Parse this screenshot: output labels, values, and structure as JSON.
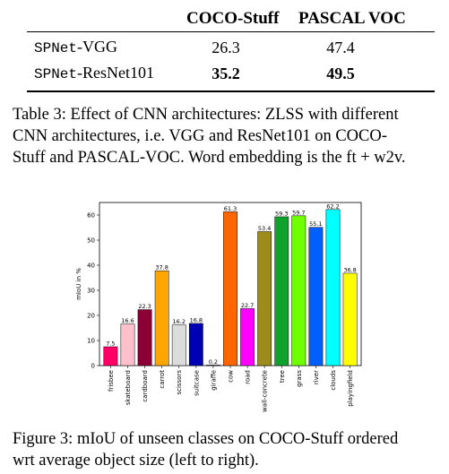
{
  "table": {
    "headers": [
      "COCO-Stuff",
      "PASCAL VOC"
    ],
    "rows": [
      {
        "prefix": "SPNet",
        "suffix": "-VGG",
        "values": [
          "26.3",
          "47.4"
        ],
        "bold": false
      },
      {
        "prefix": "SPNet",
        "suffix": "-ResNet101",
        "values": [
          "35.2",
          "49.5"
        ],
        "bold": true
      }
    ],
    "caption_lines": [
      "Table 3: Effect of CNN architectures: ZLSS with different",
      "CNN architectures, i.e.  VGG and ResNet101 on COCO-",
      "Stuff and PASCAL-VOC. Word embedding is the ft + w2v."
    ]
  },
  "figure": {
    "caption_lines": [
      "Figure 3: mIoU of unseen classes on COCO-Stuff ordered",
      "wrt average object size (left to right)."
    ]
  },
  "chart_data": {
    "type": "bar",
    "ylabel": "mIoU in %",
    "ylim": [
      0,
      65
    ],
    "yticks": [
      0,
      10,
      20,
      30,
      40,
      50,
      60
    ],
    "grid": false,
    "categories": [
      "frisbee",
      "skateboard",
      "cardboard",
      "carrot",
      "scissors",
      "suitcase",
      "giraffe",
      "cow",
      "road",
      "wall-concrete",
      "tree",
      "grass",
      "river",
      "clouds",
      "playingfield"
    ],
    "values": [
      7.5,
      16.6,
      22.3,
      37.8,
      16.2,
      16.8,
      0.2,
      61.3,
      22.7,
      53.4,
      59.3,
      59.7,
      55.1,
      62.2,
      36.8
    ],
    "value_labels": [
      "7.5",
      "16.6",
      "22.3",
      "37.8",
      "16.2",
      "16.8",
      "0.2",
      "61.3",
      "22.7",
      "53.4",
      "59.3",
      "59.7",
      "55.1",
      "62.2",
      "36.8"
    ],
    "colors": [
      "#ff0066",
      "#ffc0cb",
      "#8b0035",
      "#ffa500",
      "#dcdcdc",
      "#0000b4",
      "#800080",
      "#ff6600",
      "#ff00ff",
      "#9c8c1c",
      "#0fa32e",
      "#70ff00",
      "#0060ff",
      "#00ffff",
      "#ffff00"
    ]
  }
}
